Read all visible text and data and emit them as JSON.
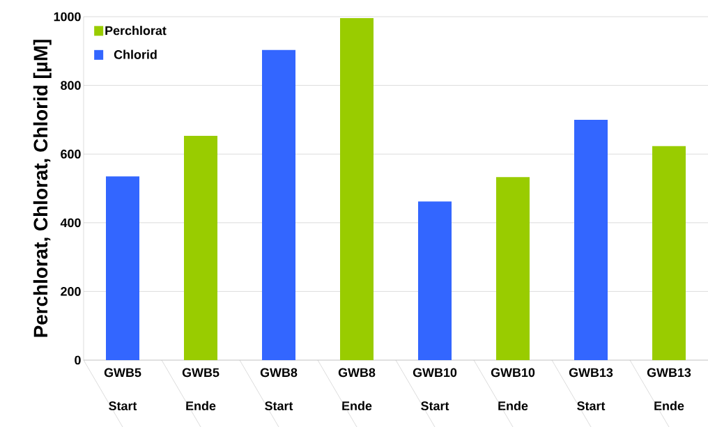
{
  "chart_data": {
    "type": "bar",
    "ylabel": "Perchlorat, Chlorat, Chlorid [µM]",
    "categories": [
      "GWB5 Start",
      "GWB5 Ende",
      "GWB8 Start",
      "GWB8 Ende",
      "GWB10 Start",
      "GWB10 Ende",
      "GWB13 Start",
      "GWB13 Ende"
    ],
    "series": [
      {
        "name": "Perchlorat",
        "color": "#99cc00",
        "values": [
          null,
          653,
          null,
          996,
          null,
          533,
          null,
          623
        ]
      },
      {
        "name": "Chlorid",
        "color": "#3366ff",
        "values": [
          535,
          null,
          903,
          null,
          462,
          null,
          700,
          null
        ]
      }
    ],
    "ylim": [
      0,
      1000
    ],
    "yticks": [
      0,
      200,
      400,
      600,
      800,
      1000
    ],
    "grid": "y",
    "legend": "top left"
  }
}
